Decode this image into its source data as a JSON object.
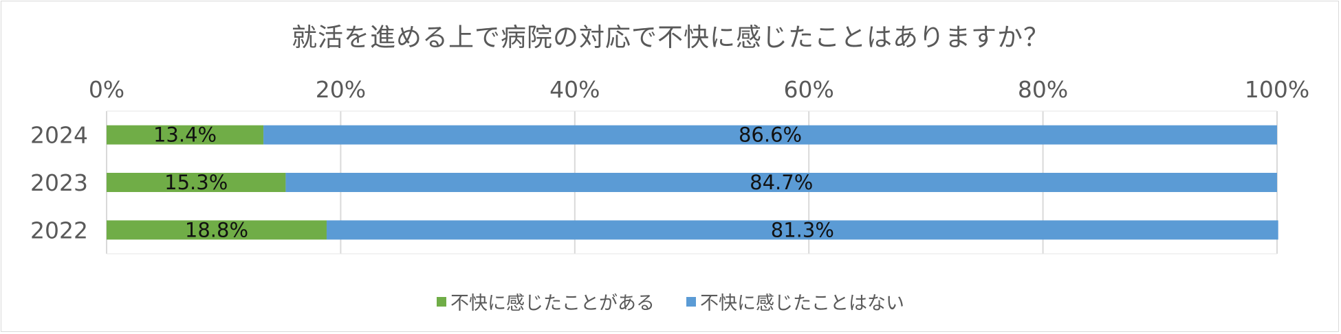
{
  "chart_data": {
    "type": "bar",
    "orientation": "horizontal",
    "stacked": true,
    "title": "就活を進める上で病院の対応で不快に感じたことはありますか？",
    "categories": [
      "2024",
      "2023",
      "2022"
    ],
    "series": [
      {
        "name": "不快に感じたことがある",
        "values": [
          13.4,
          15.3,
          18.8
        ],
        "labels": [
          "13.4%",
          "15.3%",
          "18.8%"
        ],
        "color": "#70ad47"
      },
      {
        "name": "不快に感じたことはない",
        "values": [
          86.6,
          84.7,
          81.3
        ],
        "labels": [
          "86.6%",
          "84.7%",
          "81.3%"
        ],
        "color": "#5b9bd5"
      }
    ],
    "xlim": [
      0,
      100
    ],
    "ticks": [
      "0%",
      "20%",
      "40%",
      "60%",
      "80%",
      "100%"
    ],
    "grid": true,
    "legend_position": "bottom"
  }
}
